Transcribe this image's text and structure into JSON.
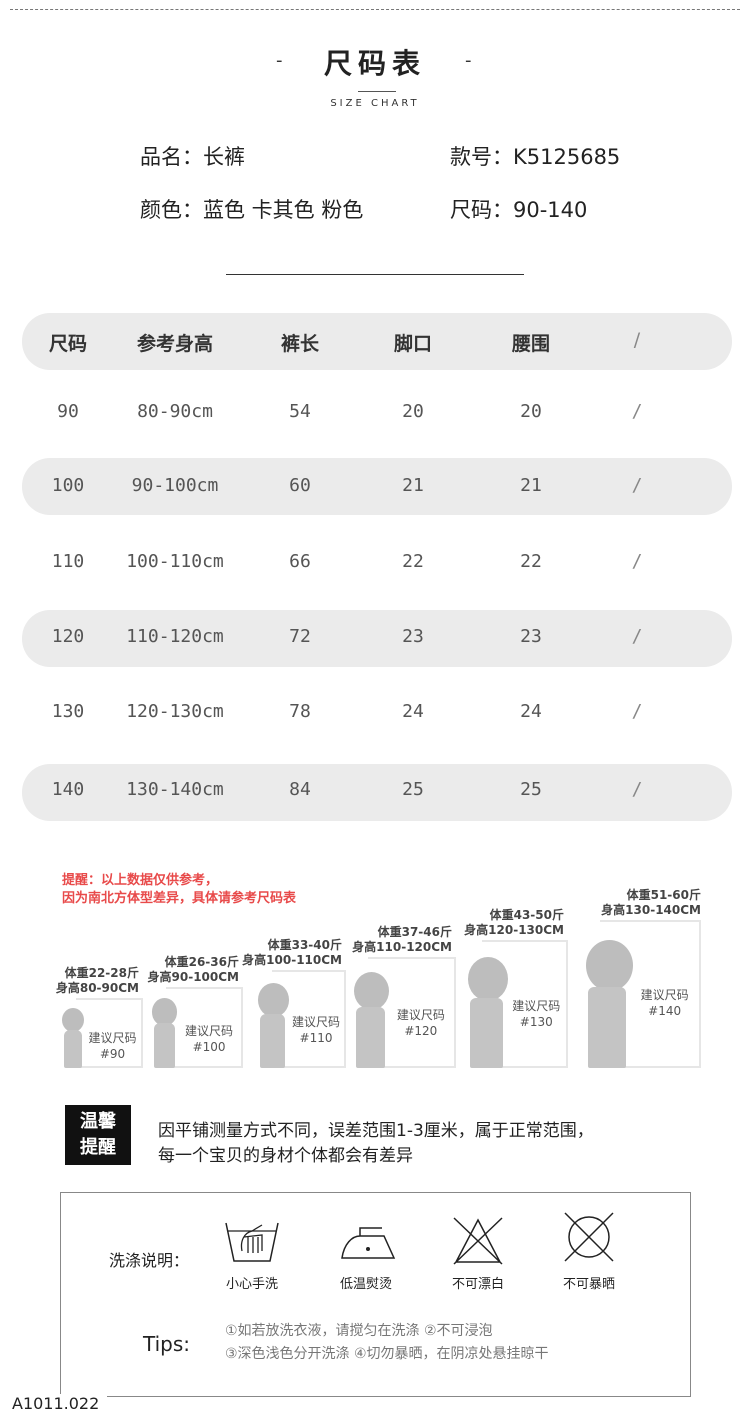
{
  "header": {
    "title": "尺码表",
    "dash_left": "-",
    "dash_right": "-",
    "subtitle": "SIZE CHART"
  },
  "info": {
    "name_label": "品名：",
    "name": "长裤",
    "code_label": "款号：",
    "code": "K5125685",
    "color_label": "颜色：",
    "colors": "蓝色 卡其色 粉色",
    "size_label": "尺码：",
    "sizes": "90-140"
  },
  "table": {
    "columns": [
      "尺码",
      "参考身高",
      "裤长",
      "脚口",
      "腰围",
      "/"
    ],
    "rows": [
      [
        "90",
        "80-90cm",
        "54",
        "20",
        "20",
        "/"
      ],
      [
        "100",
        "90-100cm",
        "60",
        "21",
        "21",
        "/"
      ],
      [
        "110",
        "100-110cm",
        "66",
        "22",
        "22",
        "/"
      ],
      [
        "120",
        "110-120cm",
        "72",
        "23",
        "23",
        "/"
      ],
      [
        "130",
        "120-130cm",
        "78",
        "24",
        "24",
        "/"
      ],
      [
        "140",
        "130-140cm",
        "84",
        "25",
        "25",
        "/"
      ]
    ]
  },
  "reminder": {
    "line1": "提醒：以上数据仅供参考，",
    "line2": "因为南北方体型差异，具体请参考尺码表"
  },
  "figures": [
    {
      "weight": "体重22-28斤",
      "height": "身高80-90CM",
      "suggest": "建议尺码",
      "size": "#90"
    },
    {
      "weight": "体重26-36斤",
      "height": "身高90-100CM",
      "suggest": "建议尺码",
      "size": "#100"
    },
    {
      "weight": "体重33-40斤",
      "height": "身高100-110CM",
      "suggest": "建议尺码",
      "size": "#110"
    },
    {
      "weight": "体重37-46斤",
      "height": "身高110-120CM",
      "suggest": "建议尺码",
      "size": "#120"
    },
    {
      "weight": "体重43-50斤",
      "height": "身高120-130CM",
      "suggest": "建议尺码",
      "size": "#130"
    },
    {
      "weight": "体重51-60斤",
      "height": "身高130-140CM",
      "suggest": "建议尺码",
      "size": "#140"
    }
  ],
  "warm_tip": {
    "badge1": "温馨",
    "badge2": "提醒",
    "line1": "因平铺测量方式不同，误差范围1-3厘米，属于正常范围，",
    "line2": "每一个宝贝的身材个体都会有差异"
  },
  "care": {
    "label": "洗涤说明：",
    "items": [
      {
        "icon": "hand-wash-icon",
        "text": "小心手洗"
      },
      {
        "icon": "low-iron-icon",
        "text": "低温熨烫"
      },
      {
        "icon": "no-bleach-icon",
        "text": "不可漂白"
      },
      {
        "icon": "no-tumble-dry-icon",
        "text": "不可暴晒"
      }
    ],
    "tips_label": "Tips:",
    "tip1": "①如若放洗衣液，请搅匀在洗涤 ②不可浸泡",
    "tip2": "③深色浅色分开洗涤 ④切勿暴晒，在阴凉处悬挂晾干"
  },
  "footer": {
    "code": "A1011.022"
  }
}
